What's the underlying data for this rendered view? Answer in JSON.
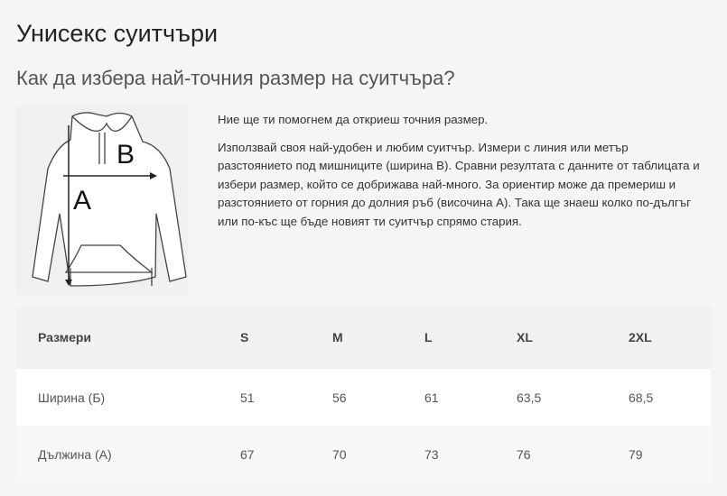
{
  "title": "Унисекс суитчъри",
  "subtitle": "Как да избера най-точния размер на суитчъра?",
  "diagram": {
    "label_a": "A",
    "label_b": "B"
  },
  "intro": "Ние ще ти помогнем да откриеш точния размер.",
  "body": "Използвай своя най-удобен и любим суитчър. Измери с линия или метър разстоянието под мишниците (ширина В). Сравни резултата с данните от таблицата и избери размер, който се добрижава най-много. За ориентир може да премериш и разстоянието от горния до долния ръб (височина А). Така ще знаеш колко по-дългъг или по-къс ще бъде новият ти суитчър спрямо стария.",
  "table": {
    "headers": [
      "Размери",
      "S",
      "M",
      "L",
      "XL",
      "2XL"
    ],
    "rows": [
      [
        "Ширина (Б)",
        "51",
        "56",
        "61",
        "63,5",
        "68,5"
      ],
      [
        "Дължина (А)",
        "67",
        "70",
        "73",
        "76",
        "79"
      ]
    ]
  }
}
